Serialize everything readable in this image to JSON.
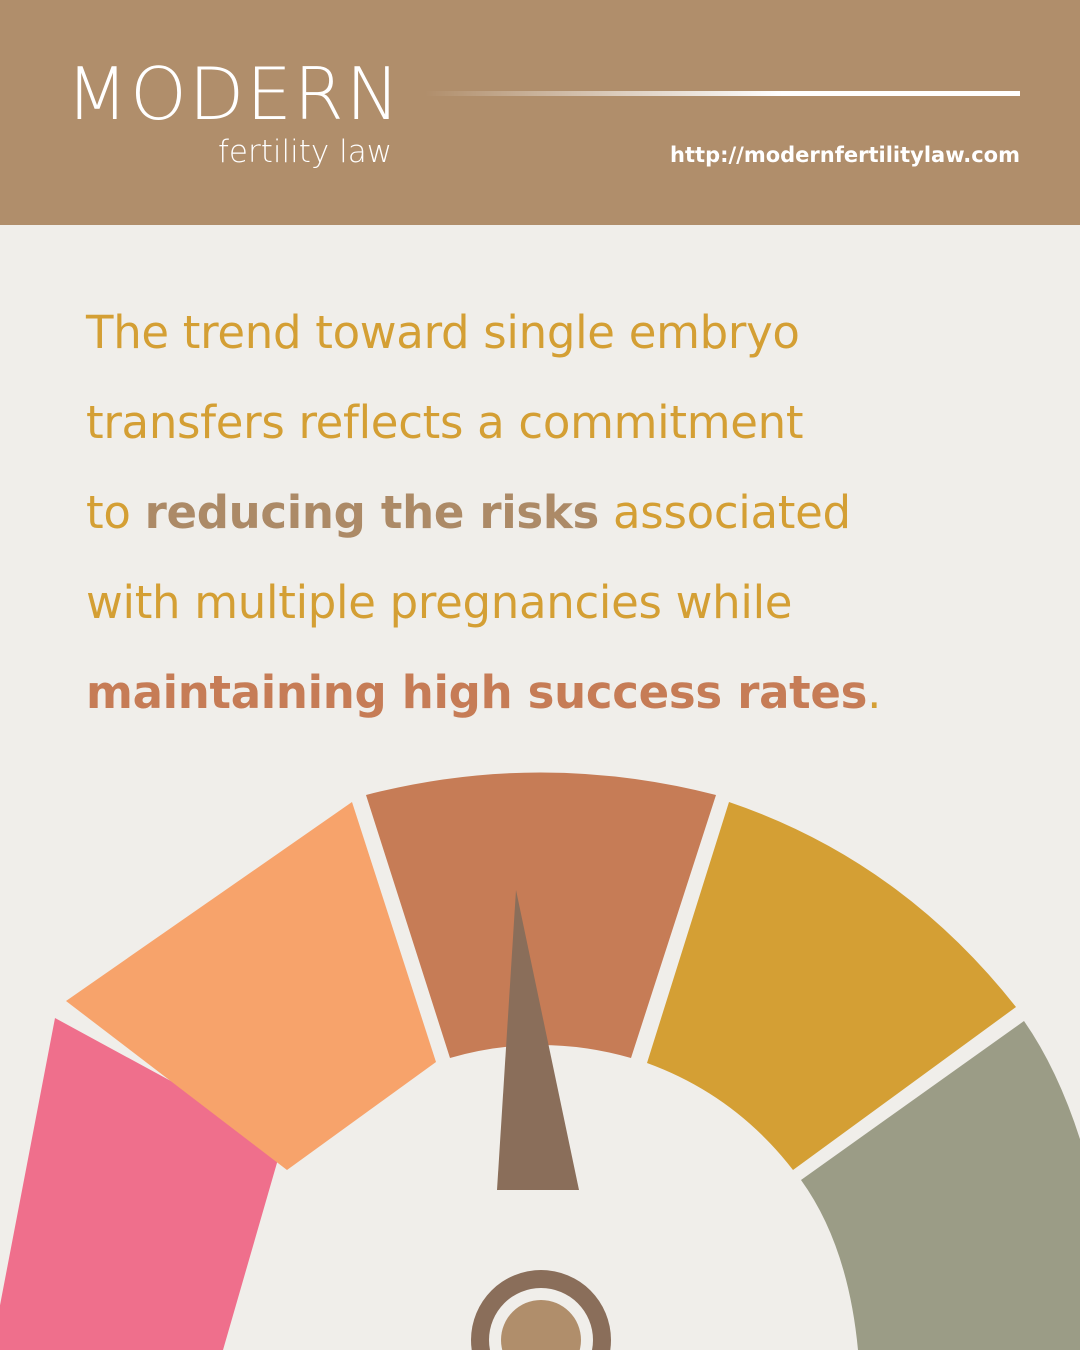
{
  "header": {
    "logo_word": "MODERN",
    "logo_sub": "fertility law",
    "url": "http://modernfertilitylaw.com",
    "background_color": "#b08e6b"
  },
  "quote": {
    "line1": "The trend toward single embryo",
    "line2": "transfers reflects a commitment",
    "line3_pre": "to ",
    "line3_emphasis": "reducing the risks",
    "line3_post": " associated",
    "line4": "with multiple pregnancies while",
    "line5_emphasis": "maintaining high success rates",
    "line5_post": ".",
    "text_color": "#d49f34",
    "emphasis1_color": "#ac8a67",
    "emphasis2_color": "#c67c56"
  },
  "gauge": {
    "segment_colors": [
      "#ef6f8c",
      "#f7a36b",
      "#c67c56",
      "#d49f34",
      "#9b9c86"
    ],
    "needle_color": "#8a6e5a",
    "hub_color": "#b08e6b"
  }
}
